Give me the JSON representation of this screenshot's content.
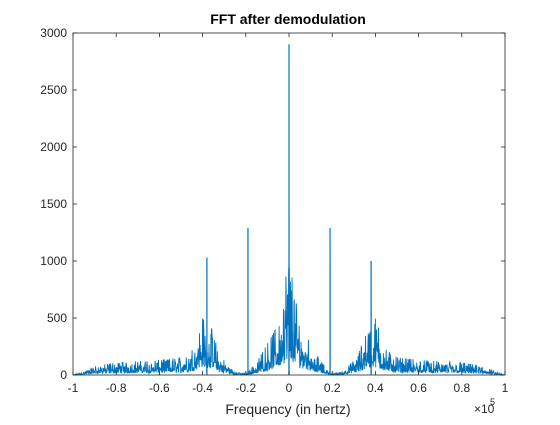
{
  "chart_data": {
    "type": "line",
    "title": "FFT after demodulation",
    "xlabel": "Frequency (in hertz)",
    "ylabel": "",
    "xlim": [
      -100000,
      100000
    ],
    "ylim": [
      0,
      3000
    ],
    "x_exponent_label": "×10",
    "x_exponent_power": "5",
    "xticks": [
      -100000,
      -80000,
      -60000,
      -40000,
      -20000,
      0,
      20000,
      40000,
      60000,
      80000,
      100000
    ],
    "xtick_labels": [
      "-1",
      "-0.8",
      "-0.6",
      "-0.4",
      "-0.2",
      "0",
      "0.2",
      "0.4",
      "0.6",
      "0.8",
      "1"
    ],
    "yticks": [
      0,
      500,
      1000,
      1500,
      2000,
      2500,
      3000
    ],
    "ytick_labels": [
      "0",
      "500",
      "1000",
      "1500",
      "2000",
      "2500",
      "3000"
    ],
    "grid": false,
    "line_color": "#0072bd",
    "peaks": [
      {
        "x": 0,
        "y": 2900
      },
      {
        "x": -19000,
        "y": 1290
      },
      {
        "x": 19000,
        "y": 1290
      },
      {
        "x": -38000,
        "y": 1030
      },
      {
        "x": 38000,
        "y": 1000
      }
    ],
    "envelope": {
      "x": [
        -100000,
        -95000,
        -90000,
        -80000,
        -70000,
        -60000,
        -50000,
        -45000,
        -40000,
        -36000,
        -32000,
        -25000,
        -20000,
        -15000,
        -10000,
        -5000,
        -2000,
        0,
        2000,
        5000,
        10000,
        15000,
        20000,
        25000,
        32000,
        36000,
        40000,
        45000,
        50000,
        60000,
        70000,
        80000,
        90000,
        95000,
        100000
      ],
      "y": [
        0,
        30,
        70,
        100,
        110,
        120,
        140,
        200,
        450,
        380,
        150,
        30,
        10,
        100,
        250,
        400,
        700,
        1000,
        700,
        400,
        250,
        100,
        10,
        30,
        150,
        380,
        450,
        200,
        140,
        120,
        110,
        100,
        70,
        30,
        0
      ]
    }
  }
}
